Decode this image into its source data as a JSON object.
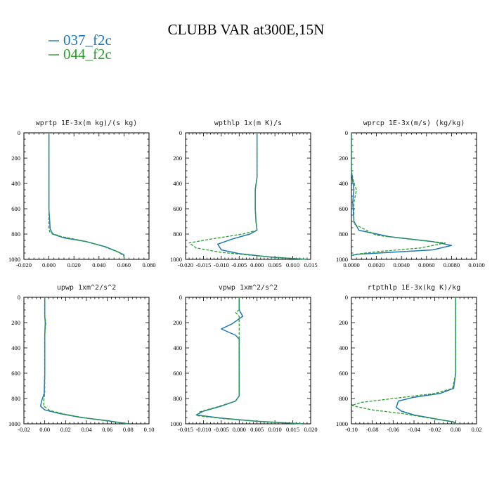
{
  "figure": {
    "title": "CLUBB VAR at300E,15N",
    "legend": [
      {
        "label": "037_f2c",
        "color": "#1f77b4",
        "dash": "solid"
      },
      {
        "label": "044_f2c",
        "color": "#2ca02c",
        "dash": "dashed"
      }
    ]
  },
  "chart_data": [
    {
      "type": "line",
      "title": "wprtp  1E-3x(m kg)/(s kg)",
      "xlim": [
        -0.02,
        0.08
      ],
      "xticks": [
        "-0.020",
        "0.000",
        "0.020",
        "0.040",
        "0.060",
        "0.080"
      ],
      "ylim": [
        1000,
        0
      ],
      "yticks": [
        "0",
        "200",
        "400",
        "600",
        "800",
        "1000"
      ],
      "series": [
        {
          "name": "037_f2c",
          "points": [
            [
              0.0,
              0
            ],
            [
              0.0,
              200
            ],
            [
              0.0,
              400
            ],
            [
              0.0,
              600
            ],
            [
              0.001,
              760
            ],
            [
              0.003,
              800
            ],
            [
              0.012,
              830
            ],
            [
              0.03,
              860
            ],
            [
              0.045,
              900
            ],
            [
              0.055,
              940
            ],
            [
              0.06,
              965
            ],
            [
              0.06,
              980
            ]
          ]
        },
        {
          "name": "044_f2c",
          "points": [
            [
              0.0,
              0
            ],
            [
              0.0,
              200
            ],
            [
              0.0,
              400
            ],
            [
              0.0,
              600
            ],
            [
              0.0,
              760
            ],
            [
              0.001,
              790
            ],
            [
              0.01,
              820
            ],
            [
              0.028,
              855
            ],
            [
              0.043,
              895
            ],
            [
              0.056,
              945
            ],
            [
              0.06,
              975
            ],
            [
              0.06,
              985
            ]
          ]
        }
      ]
    },
    {
      "type": "line",
      "title": "wpthlp  1x(m K)/s",
      "xlim": [
        -0.02,
        0.015
      ],
      "xticks": [
        "-0.020",
        "-0.015",
        "-0.010",
        "-0.005",
        "0.000",
        "0.005",
        "0.010",
        "0.015"
      ],
      "ylim": [
        1000,
        0
      ],
      "yticks": [
        "0",
        "200",
        "400",
        "600",
        "800",
        "1000"
      ],
      "series": [
        {
          "name": "037_f2c",
          "points": [
            [
              0.0,
              0
            ],
            [
              0.0,
              200
            ],
            [
              0.0,
              350
            ],
            [
              -0.0005,
              450
            ],
            [
              -0.0005,
              600
            ],
            [
              -0.0003,
              700
            ],
            [
              0.0,
              770
            ],
            [
              -0.002,
              800
            ],
            [
              -0.007,
              840
            ],
            [
              -0.011,
              880
            ],
            [
              -0.01,
              925
            ],
            [
              -0.005,
              955
            ],
            [
              0.005,
              985
            ],
            [
              0.014,
              1000
            ]
          ]
        },
        {
          "name": "044_f2c",
          "points": [
            [
              0.0,
              0
            ],
            [
              0.0,
              200
            ],
            [
              0.0,
              350
            ],
            [
              -0.0005,
              450
            ],
            [
              -0.0005,
              600
            ],
            [
              -0.0003,
              700
            ],
            [
              0.0,
              770
            ],
            [
              -0.004,
              800
            ],
            [
              -0.013,
              840
            ],
            [
              -0.019,
              870
            ],
            [
              -0.017,
              910
            ],
            [
              -0.01,
              945
            ],
            [
              0.003,
              980
            ],
            [
              0.014,
              1000
            ]
          ]
        }
      ]
    },
    {
      "type": "line",
      "title": "wprcp  1E-3x(m/s) (kg/kg)",
      "xlim": [
        0.0,
        0.01
      ],
      "xticks": [
        "0.0000",
        "0.0020",
        "0.0040",
        "0.0060",
        "0.0080",
        "0.0100"
      ],
      "ylim": [
        1000,
        0
      ],
      "yticks": [
        "0",
        "200",
        "400",
        "600",
        "800",
        "1000"
      ],
      "series": [
        {
          "name": "037_f2c",
          "points": [
            [
              0.0,
              0
            ],
            [
              0.0,
              300
            ],
            [
              0.0001,
              380
            ],
            [
              0.0002,
              450
            ],
            [
              0.0001,
              550
            ],
            [
              0.0002,
              700
            ],
            [
              0.0006,
              770
            ],
            [
              0.003,
              820
            ],
            [
              0.0065,
              860
            ],
            [
              0.008,
              890
            ],
            [
              0.0065,
              925
            ],
            [
              0.003,
              945
            ],
            [
              0.0005,
              960
            ],
            [
              0.0,
              970
            ]
          ]
        },
        {
          "name": "044_f2c",
          "points": [
            [
              0.0,
              0
            ],
            [
              0.0,
              300
            ],
            [
              0.0002,
              400
            ],
            [
              0.0004,
              450
            ],
            [
              0.0002,
              550
            ],
            [
              0.0002,
              720
            ],
            [
              0.002,
              810
            ],
            [
              0.0055,
              850
            ],
            [
              0.0075,
              870
            ],
            [
              0.0055,
              910
            ],
            [
              0.002,
              940
            ],
            [
              0.0003,
              960
            ],
            [
              0.0,
              970
            ]
          ]
        }
      ]
    },
    {
      "type": "line",
      "title": "upwp  1xm^2/s^2",
      "xlim": [
        -0.02,
        0.1
      ],
      "xticks": [
        "-0.02",
        "0.00",
        "0.02",
        "0.04",
        "0.06",
        "0.08",
        "0.10"
      ],
      "ylim": [
        1000,
        0
      ],
      "yticks": [
        "0",
        "200",
        "400",
        "600",
        "800",
        "1000"
      ],
      "series": [
        {
          "name": "037_f2c",
          "points": [
            [
              0.0,
              0
            ],
            [
              0.0,
              150
            ],
            [
              0.0005,
              200
            ],
            [
              0.0,
              300
            ],
            [
              0.0,
              600
            ],
            [
              -0.0005,
              760
            ],
            [
              -0.003,
              820
            ],
            [
              -0.004,
              860
            ],
            [
              0.0,
              890
            ],
            [
              0.015,
              920
            ],
            [
              0.035,
              950
            ],
            [
              0.06,
              975
            ],
            [
              0.08,
              1000
            ]
          ]
        },
        {
          "name": "044_f2c",
          "points": [
            [
              0.0,
              0
            ],
            [
              0.0,
              150
            ],
            [
              0.001,
              200
            ],
            [
              0.0,
              300
            ],
            [
              0.0,
              600
            ],
            [
              0.0,
              760
            ],
            [
              -0.001,
              820
            ],
            [
              -0.001,
              860
            ],
            [
              0.005,
              895
            ],
            [
              0.02,
              925
            ],
            [
              0.04,
              955
            ],
            [
              0.062,
              980
            ],
            [
              0.08,
              1000
            ]
          ]
        }
      ]
    },
    {
      "type": "line",
      "title": "vpwp  1xm^2/s^2",
      "xlim": [
        -0.015,
        0.02
      ],
      "xticks": [
        "-0.015",
        "-0.010",
        "-0.005",
        "0.000",
        "0.005",
        "0.010",
        "0.015",
        "0.020"
      ],
      "ylim": [
        1000,
        0
      ],
      "yticks": [
        "0",
        "200",
        "400",
        "600",
        "800",
        "1000"
      ],
      "series": [
        {
          "name": "037_f2c",
          "points": [
            [
              0.0,
              0
            ],
            [
              0.0,
              100
            ],
            [
              0.001,
              150
            ],
            [
              -0.002,
              210
            ],
            [
              -0.005,
              250
            ],
            [
              -0.001,
              300
            ],
            [
              0.0,
              330
            ],
            [
              0.0,
              600
            ],
            [
              0.0,
              780
            ],
            [
              -0.001,
              820
            ],
            [
              -0.005,
              860
            ],
            [
              -0.01,
              900
            ],
            [
              -0.012,
              930
            ],
            [
              -0.005,
              955
            ],
            [
              0.005,
              980
            ],
            [
              0.018,
              1000
            ]
          ]
        },
        {
          "name": "044_f2c",
          "points": [
            [
              0.0,
              0
            ],
            [
              0.0,
              100
            ],
            [
              -0.001,
              120
            ],
            [
              0.0,
              150
            ],
            [
              0.0,
              300
            ],
            [
              0.0,
              600
            ],
            [
              0.0,
              780
            ],
            [
              -0.001,
              820
            ],
            [
              -0.006,
              865
            ],
            [
              -0.011,
              905
            ],
            [
              -0.012,
              935
            ],
            [
              -0.004,
              960
            ],
            [
              0.006,
              982
            ],
            [
              0.018,
              1000
            ]
          ]
        }
      ]
    },
    {
      "type": "line",
      "title": "rtpthlp  1E-3x(kg K)/kg",
      "xlim": [
        -0.1,
        0.02
      ],
      "xticks": [
        "-0.10",
        "-0.08",
        "-0.06",
        "-0.04",
        "-0.02",
        "0.00",
        "0.02"
      ],
      "ylim": [
        1000,
        0
      ],
      "yticks": [
        "0",
        "200",
        "400",
        "600",
        "800",
        "1000"
      ],
      "series": [
        {
          "name": "037_f2c",
          "points": [
            [
              0.0,
              0
            ],
            [
              0.0,
              300
            ],
            [
              0.0,
              600
            ],
            [
              -0.002,
              720
            ],
            [
              -0.015,
              760
            ],
            [
              -0.04,
              790
            ],
            [
              -0.055,
              820
            ],
            [
              -0.057,
              870
            ],
            [
              -0.052,
              900
            ],
            [
              -0.04,
              930
            ],
            [
              -0.02,
              960
            ],
            [
              -0.002,
              985
            ],
            [
              0.0,
              1000
            ]
          ]
        },
        {
          "name": "044_f2c",
          "points": [
            [
              0.0,
              0
            ],
            [
              0.0,
              300
            ],
            [
              0.0,
              600
            ],
            [
              -0.003,
              720
            ],
            [
              -0.02,
              760
            ],
            [
              -0.06,
              800
            ],
            [
              -0.09,
              830
            ],
            [
              -0.1,
              855
            ],
            [
              -0.08,
              890
            ],
            [
              -0.05,
              920
            ],
            [
              -0.025,
              955
            ],
            [
              -0.003,
              985
            ],
            [
              0.0,
              1000
            ]
          ]
        }
      ]
    }
  ]
}
